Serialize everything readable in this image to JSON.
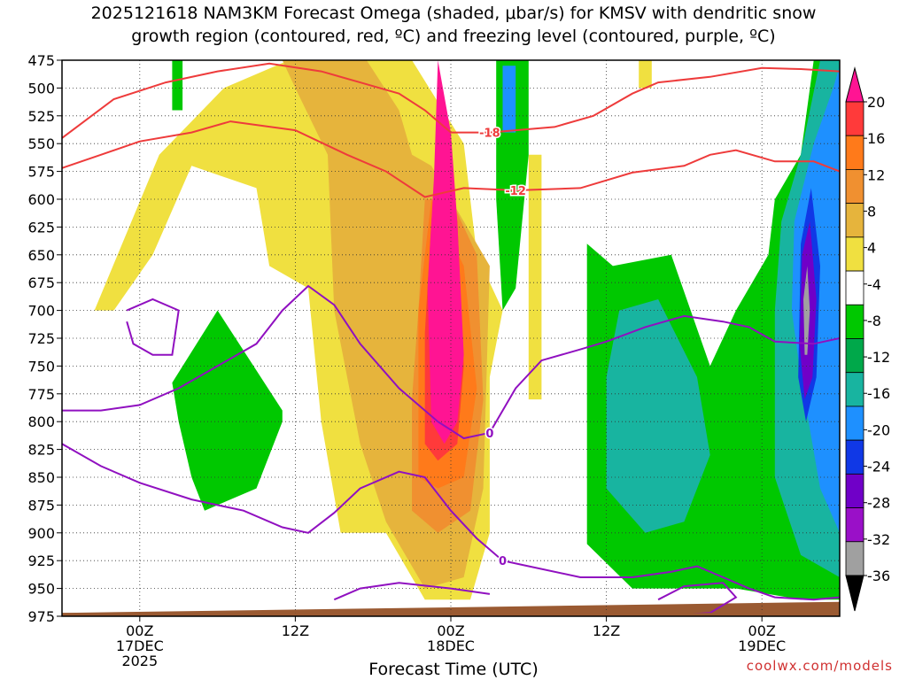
{
  "chart_data": {
    "type": "heatmap",
    "title_line1": "2025121618 NAM3KM Forecast Omega (shaded, μbar/s) for KMSV with dendritic snow",
    "title_line2": "growth region (contoured, red, ºC) and freezing level (contoured, purple, ºC)",
    "xlabel": "Forecast Time (UTC)",
    "ylabel": "",
    "credit": "coolwx.com/models",
    "y_axis": {
      "unit": "mb",
      "range": [
        475,
        975
      ],
      "ticks": [
        "475",
        "500",
        "525",
        "550",
        "575",
        "600",
        "625",
        "650",
        "675",
        "700",
        "725",
        "750",
        "775",
        "800",
        "825",
        "850",
        "875",
        "900",
        "925",
        "950",
        "975"
      ]
    },
    "x_axis": {
      "range_hours": [
        0,
        60
      ],
      "ticks": [
        {
          "hour": 6,
          "line1": "00Z",
          "line2": "17DEC",
          "line3": "2025"
        },
        {
          "hour": 18,
          "line1": "12Z",
          "line2": "",
          "line3": ""
        },
        {
          "hour": 30,
          "line1": "00Z",
          "line2": "18DEC",
          "line3": ""
        },
        {
          "hour": 42,
          "line1": "12Z",
          "line2": "",
          "line3": ""
        },
        {
          "hour": 54,
          "line1": "00Z",
          "line2": "19DEC",
          "line3": ""
        }
      ]
    },
    "colorbar": {
      "labels": [
        "20",
        "16",
        "12",
        "8",
        "4",
        "-4",
        "-8",
        "-12",
        "-16",
        "-20",
        "-24",
        "-28",
        "-32",
        "-36"
      ],
      "bands": [
        {
          "value": 20,
          "color": "#ff1493"
        },
        {
          "value": 18,
          "color": "#ff3a3a"
        },
        {
          "value": 14,
          "color": "#ff7a1a"
        },
        {
          "value": 10,
          "color": "#f09030"
        },
        {
          "value": 8,
          "color": "#e6b43c"
        },
        {
          "value": 6,
          "color": "#f0e040"
        },
        {
          "value": 0,
          "color": "#ffffff"
        },
        {
          "value": -4,
          "color": "#00c800"
        },
        {
          "value": -8,
          "color": "#00a84a"
        },
        {
          "value": -12,
          "color": "#18b4a0"
        },
        {
          "value": -16,
          "color": "#1e90ff"
        },
        {
          "value": -20,
          "color": "#1038e6"
        },
        {
          "value": -24,
          "color": "#7000c8"
        },
        {
          "value": -28,
          "color": "#9a10c8"
        },
        {
          "value": -32,
          "color": "#a0a0a0"
        },
        {
          "value": -36,
          "color": "#000000"
        }
      ]
    },
    "omega_fields": [
      {
        "color": "#f0e040",
        "pts": [
          [
            2.5,
            700
          ],
          [
            7.5,
            560
          ],
          [
            12.5,
            500
          ],
          [
            17.5,
            475
          ],
          [
            27,
            475
          ],
          [
            31,
            550
          ],
          [
            32,
            650
          ],
          [
            34,
            700
          ],
          [
            33,
            760
          ],
          [
            33,
            900
          ],
          [
            31.5,
            960
          ],
          [
            28,
            960
          ],
          [
            25,
            900
          ],
          [
            21.5,
            900
          ],
          [
            20,
            800
          ],
          [
            19,
            680
          ],
          [
            16,
            660
          ],
          [
            15,
            590
          ],
          [
            10,
            570
          ],
          [
            7,
            650
          ],
          [
            4,
            700
          ]
        ]
      },
      {
        "color": "#f0e040",
        "pts": [
          [
            44.5,
            475
          ],
          [
            45.5,
            475
          ],
          [
            45.5,
            500
          ],
          [
            44.5,
            500
          ]
        ]
      },
      {
        "color": "#f0e040",
        "pts": [
          [
            36,
            560
          ],
          [
            37,
            560
          ],
          [
            37,
            780
          ],
          [
            36,
            780
          ]
        ]
      },
      {
        "color": "#e6b43c",
        "pts": [
          [
            17,
            475
          ],
          [
            23.5,
            475
          ],
          [
            26,
            520
          ],
          [
            27,
            560
          ],
          [
            28.5,
            570
          ],
          [
            33,
            660
          ],
          [
            32.5,
            860
          ],
          [
            31,
            940
          ],
          [
            28,
            950
          ],
          [
            25,
            890
          ],
          [
            23,
            820
          ],
          [
            21,
            700
          ],
          [
            20.5,
            560
          ],
          [
            18,
            500
          ]
        ]
      },
      {
        "color": "#f09030",
        "pts": [
          [
            28,
            600
          ],
          [
            30,
            600
          ],
          [
            32,
            650
          ],
          [
            32.5,
            780
          ],
          [
            31.5,
            880
          ],
          [
            29,
            900
          ],
          [
            27,
            880
          ],
          [
            27,
            780
          ],
          [
            27.5,
            700
          ]
        ]
      },
      {
        "color": "#ff7a1a",
        "pts": [
          [
            28.5,
            600
          ],
          [
            31,
            660
          ],
          [
            32,
            770
          ],
          [
            31,
            850
          ],
          [
            29,
            860
          ],
          [
            27.5,
            850
          ],
          [
            27.5,
            700
          ]
        ]
      },
      {
        "color": "#ff3a3a",
        "pts": [
          [
            29,
            560
          ],
          [
            30.5,
            620
          ],
          [
            31,
            750
          ],
          [
            30.5,
            820
          ],
          [
            29,
            835
          ],
          [
            28,
            820
          ],
          [
            28,
            720
          ],
          [
            28.5,
            620
          ]
        ]
      },
      {
        "color": "#ff1493",
        "pts": [
          [
            29,
            475
          ],
          [
            30,
            540
          ],
          [
            30.5,
            620
          ],
          [
            31,
            740
          ],
          [
            30.5,
            800
          ],
          [
            29.5,
            820
          ],
          [
            28.5,
            800
          ],
          [
            28.2,
            680
          ],
          [
            28.7,
            580
          ]
        ]
      },
      {
        "color": "#00c800",
        "pts": [
          [
            33.5,
            475
          ],
          [
            36,
            475
          ],
          [
            36,
            560
          ],
          [
            35,
            680
          ],
          [
            34,
            700
          ],
          [
            33.5,
            600
          ]
        ]
      },
      {
        "color": "#00c800",
        "pts": [
          [
            8.5,
            765
          ],
          [
            12,
            700
          ],
          [
            17,
            790
          ],
          [
            17,
            800
          ],
          [
            15,
            860
          ],
          [
            13,
            870
          ],
          [
            11,
            880
          ],
          [
            10,
            850
          ],
          [
            9,
            800
          ]
        ]
      },
      {
        "color": "#00c800",
        "pts": [
          [
            8.5,
            475
          ],
          [
            9.3,
            475
          ],
          [
            9.3,
            520
          ],
          [
            8.5,
            520
          ]
        ]
      },
      {
        "color": "#00c800",
        "pts": [
          [
            40.5,
            640
          ],
          [
            42.5,
            660
          ],
          [
            47,
            650
          ],
          [
            50,
            750
          ],
          [
            52,
            700
          ],
          [
            54.5,
            650
          ],
          [
            55,
            600
          ],
          [
            57,
            560
          ],
          [
            58,
            475
          ],
          [
            60,
            475
          ],
          [
            60,
            960
          ],
          [
            57,
            960
          ],
          [
            52,
            950
          ],
          [
            48,
            950
          ],
          [
            44,
            950
          ],
          [
            40.5,
            910
          ]
        ]
      },
      {
        "color": "#18b4a0",
        "pts": [
          [
            43,
            700
          ],
          [
            46,
            690
          ],
          [
            49,
            760
          ],
          [
            50,
            830
          ],
          [
            48,
            890
          ],
          [
            45,
            900
          ],
          [
            42,
            860
          ],
          [
            42,
            760
          ]
        ]
      },
      {
        "color": "#18b4a0",
        "pts": [
          [
            55.5,
            620
          ],
          [
            57,
            560
          ],
          [
            58.5,
            475
          ],
          [
            60,
            475
          ],
          [
            60,
            940
          ],
          [
            57,
            920
          ],
          [
            55,
            850
          ],
          [
            55,
            700
          ]
        ]
      },
      {
        "color": "#1e90ff",
        "pts": [
          [
            56.5,
            620
          ],
          [
            58,
            550
          ],
          [
            59.5,
            500
          ],
          [
            60,
            480
          ],
          [
            60,
            900
          ],
          [
            58.5,
            860
          ],
          [
            57,
            760
          ],
          [
            56.3,
            700
          ]
        ]
      },
      {
        "color": "#1e90ff",
        "pts": [
          [
            34,
            480
          ],
          [
            35,
            480
          ],
          [
            35,
            540
          ],
          [
            34,
            540
          ]
        ]
      },
      {
        "color": "#1038e6",
        "pts": [
          [
            57,
            640
          ],
          [
            57.8,
            590
          ],
          [
            58.5,
            660
          ],
          [
            58.2,
            760
          ],
          [
            57.4,
            800
          ],
          [
            56.8,
            760
          ]
        ]
      },
      {
        "color": "#7000c8",
        "pts": [
          [
            57.1,
            650
          ],
          [
            57.7,
            620
          ],
          [
            58.2,
            690
          ],
          [
            57.9,
            760
          ],
          [
            57.3,
            780
          ],
          [
            56.9,
            730
          ]
        ]
      },
      {
        "color": "#a0a0a0",
        "pts": [
          [
            57.2,
            690
          ],
          [
            57.5,
            660
          ],
          [
            57.7,
            700
          ],
          [
            57.5,
            740
          ],
          [
            57.3,
            740
          ]
        ]
      }
    ],
    "dgz_contours": [
      {
        "label": "-18",
        "pts": [
          [
            0,
            545
          ],
          [
            4,
            510
          ],
          [
            8,
            495
          ],
          [
            12,
            485
          ],
          [
            16,
            478
          ],
          [
            20,
            485
          ],
          [
            23,
            495
          ],
          [
            26,
            505
          ],
          [
            28,
            520
          ],
          [
            30,
            540
          ],
          [
            33,
            540
          ],
          [
            38,
            535
          ],
          [
            41,
            525
          ],
          [
            44,
            505
          ],
          [
            46,
            495
          ],
          [
            50,
            490
          ],
          [
            54,
            482
          ],
          [
            57,
            483
          ],
          [
            60,
            485
          ]
        ]
      },
      {
        "label": "-12",
        "pts": [
          [
            0,
            572
          ],
          [
            3,
            560
          ],
          [
            6,
            548
          ],
          [
            10,
            540
          ],
          [
            13,
            530
          ],
          [
            18,
            538
          ],
          [
            22,
            560
          ],
          [
            25,
            575
          ],
          [
            28,
            598
          ],
          [
            31,
            590
          ],
          [
            35,
            592
          ],
          [
            40,
            590
          ],
          [
            44,
            576
          ],
          [
            48,
            570
          ],
          [
            50,
            560
          ],
          [
            52,
            556
          ],
          [
            55,
            566
          ],
          [
            58,
            566
          ],
          [
            60,
            575
          ]
        ]
      }
    ],
    "freezing_contours": [
      {
        "label": "0",
        "pts": [
          [
            0,
            790
          ],
          [
            3,
            790
          ],
          [
            6,
            785
          ],
          [
            9,
            770
          ],
          [
            12,
            750
          ],
          [
            15,
            730
          ],
          [
            17,
            700
          ],
          [
            19,
            678
          ],
          [
            21,
            695
          ],
          [
            23,
            730
          ],
          [
            26,
            770
          ],
          [
            29,
            800
          ],
          [
            31,
            815
          ],
          [
            33,
            810
          ],
          [
            35,
            770
          ],
          [
            37,
            745
          ],
          [
            40,
            735
          ],
          [
            42,
            728
          ],
          [
            45,
            715
          ],
          [
            48,
            705
          ],
          [
            51,
            710
          ],
          [
            53,
            715
          ],
          [
            55,
            728
          ],
          [
            58,
            730
          ],
          [
            60,
            725
          ]
        ]
      },
      {
        "label": "0",
        "pts": [
          [
            0,
            820
          ],
          [
            3,
            840
          ],
          [
            6,
            855
          ],
          [
            10,
            870
          ],
          [
            14,
            880
          ],
          [
            17,
            895
          ],
          [
            19,
            900
          ],
          [
            21,
            882
          ],
          [
            23,
            860
          ],
          [
            26,
            845
          ],
          [
            28,
            850
          ],
          [
            30,
            880
          ],
          [
            32,
            905
          ],
          [
            34,
            925
          ],
          [
            36,
            930
          ],
          [
            40,
            940
          ],
          [
            44,
            940
          ],
          [
            47,
            935
          ],
          [
            49,
            930
          ],
          [
            51,
            940
          ],
          [
            53,
            950
          ],
          [
            55,
            958
          ],
          [
            58,
            960
          ],
          [
            60,
            958
          ]
        ]
      },
      {
        "label": "",
        "pts": [
          [
            5,
            700
          ],
          [
            7,
            690
          ],
          [
            9,
            700
          ],
          [
            8.5,
            740
          ],
          [
            7,
            740
          ],
          [
            5.5,
            730
          ],
          [
            5,
            710
          ]
        ]
      },
      {
        "label": "",
        "pts": [
          [
            21,
            960
          ],
          [
            23,
            950
          ],
          [
            26,
            945
          ],
          [
            30,
            950
          ],
          [
            33,
            955
          ]
        ]
      },
      {
        "label": "",
        "pts": [
          [
            46,
            960
          ],
          [
            48,
            948
          ],
          [
            51,
            945
          ],
          [
            52,
            958
          ],
          [
            50,
            972
          ],
          [
            46,
            975
          ]
        ]
      }
    ],
    "ground": {
      "color": "#9a5a32",
      "pressure_start": 972,
      "pressure_end": 962
    }
  }
}
